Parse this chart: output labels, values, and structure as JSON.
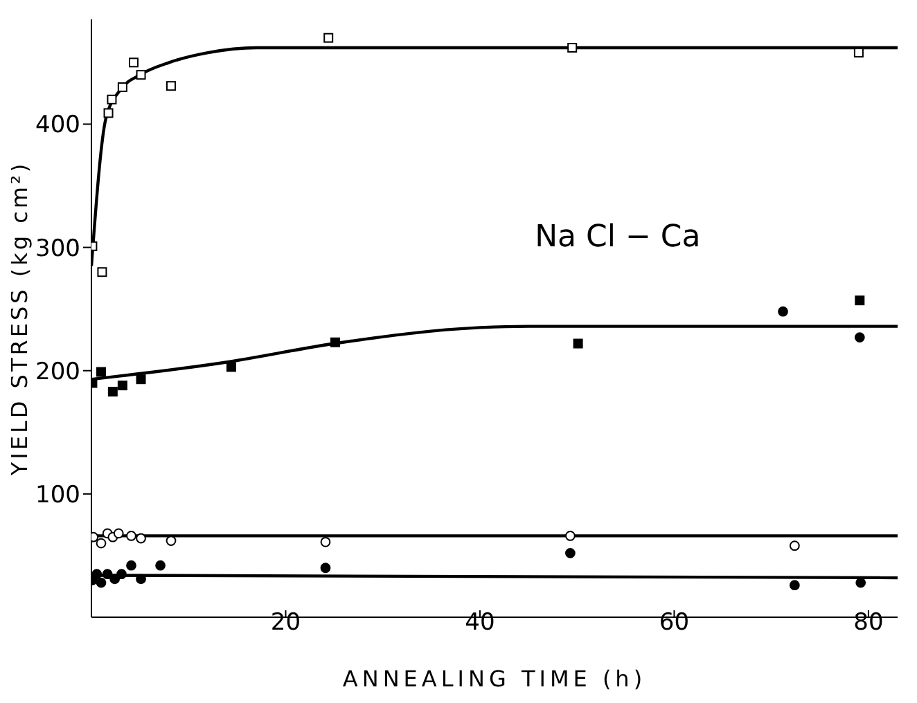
{
  "chart_data": {
    "type": "scatter",
    "xlabel": "ANNEALING TIME  (h)",
    "ylabel": "YIELD STRESS  (kg cm²)",
    "annotations": [
      "Na Cl − Ca"
    ],
    "xlim": [
      0,
      83
    ],
    "ylim": [
      0,
      485
    ],
    "xticks": [
      20,
      40,
      60,
      80
    ],
    "yticks": [
      100,
      200,
      300,
      400
    ],
    "grid": false,
    "legend": false,
    "series": [
      {
        "marker": "square",
        "color": "#ffffff",
        "x": [
          0.1,
          1.1,
          1.75,
          2.1,
          3.2,
          4.35,
          5.1,
          8.2,
          24.4,
          49.5,
          79
        ],
        "values": [
          301,
          280,
          409,
          420,
          430,
          450,
          440,
          431,
          470,
          462,
          458
        ]
      },
      {
        "marker": "square",
        "color": "#000000",
        "x": [
          0.1,
          1,
          2.2,
          3.2,
          5.1,
          14.4,
          25.1,
          50.1,
          79.1
        ],
        "values": [
          190,
          199,
          183,
          188,
          193,
          203,
          223,
          222,
          257
        ]
      },
      {
        "marker": "circle",
        "color": "#000000",
        "x": [
          71.2,
          79.1
        ],
        "values": [
          248,
          227
        ]
      },
      {
        "marker": "circle",
        "color": "#ffffff",
        "x": [
          0.2,
          1,
          1.65,
          2.2,
          2.8,
          4.1,
          5.1,
          8.2,
          24.1,
          49.3,
          72.4
        ],
        "values": [
          65,
          60,
          68,
          65,
          68,
          66,
          64,
          62,
          61,
          66,
          58
        ]
      },
      {
        "marker": "circle",
        "color": "#000000",
        "x": [
          0.1,
          0.55,
          1,
          1.65,
          2.4,
          3.1,
          4.1,
          5.1,
          7.1,
          24.1,
          49.3,
          72.4,
          79.2
        ],
        "values": [
          30,
          35,
          28,
          35,
          31,
          35,
          42,
          31,
          42,
          40,
          52,
          26,
          28
        ]
      },
      {
        "type": "line",
        "marker": "none",
        "color": "#000000",
        "x": [
          0,
          1.5,
          3,
          5,
          8,
          12,
          17,
          83
        ],
        "values": [
          285,
          405,
          428,
          440,
          450,
          458,
          462,
          462
        ]
      },
      {
        "type": "line",
        "marker": "none",
        "color": "#000000",
        "x": [
          0,
          14,
          25,
          40,
          45,
          83
        ],
        "values": [
          193,
          207,
          222,
          235,
          236,
          236
        ]
      },
      {
        "type": "line",
        "marker": "none",
        "color": "#000000",
        "x": [
          0,
          83
        ],
        "values": [
          66,
          66
        ]
      },
      {
        "type": "line",
        "marker": "none",
        "color": "#000000",
        "x": [
          0,
          83
        ],
        "values": [
          34,
          32
        ]
      }
    ]
  }
}
